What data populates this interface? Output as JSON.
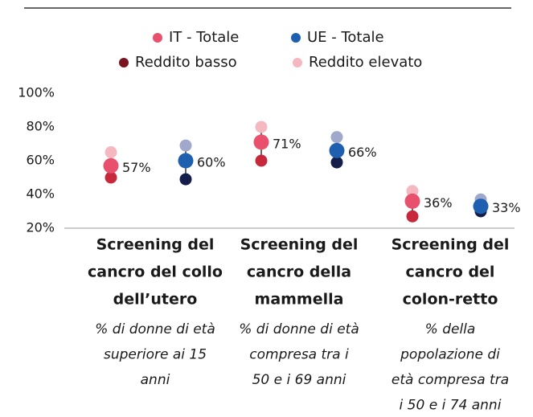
{
  "chart_data": {
    "type": "dot",
    "categories": [
      {
        "title_lines": [
          "Screening del",
          "cancro del collo",
          "dell’utero"
        ],
        "subtitle_lines": [
          "% di donne di età",
          "superiore ai 15",
          "anni"
        ]
      },
      {
        "title_lines": [
          "Screening del",
          "cancro della",
          "mammella"
        ],
        "subtitle_lines": [
          "% di donne di età",
          "compresa tra i",
          "50 e i 69 anni"
        ]
      },
      {
        "title_lines": [
          "Screening del",
          "cancro del",
          "colon-retto"
        ],
        "subtitle_lines": [
          "% della",
          "popolazione di",
          "età compresa tra",
          "i 50 e i 74 anni"
        ]
      }
    ],
    "series": [
      {
        "name": "IT - Totale",
        "color": "#e8506e",
        "group": 0,
        "values": [
          57,
          71,
          36
        ],
        "value_labels": [
          "57%",
          "71%",
          "36%"
        ]
      },
      {
        "name": "UE - Totale",
        "color": "#1f5fb0",
        "group": 1,
        "values": [
          60,
          66,
          33
        ],
        "value_labels": [
          "60%",
          "66%",
          "33%"
        ]
      },
      {
        "name": "Reddito basso",
        "legend_color": "#7a1420",
        "color": "#c8283c",
        "color_ue": "#141e4a",
        "values": [
          50,
          60,
          27
        ],
        "values_ue": [
          49,
          59,
          30
        ]
      },
      {
        "name": "Reddito elevato",
        "legend_color": "#f5b8c0",
        "color": "#f5b8c0",
        "color_ue": "#a0a8cc",
        "values": [
          65,
          80,
          42
        ],
        "values_ue": [
          69,
          74,
          37
        ]
      }
    ],
    "ylim": [
      20,
      100
    ],
    "yticks": [
      {
        "value": 20,
        "label": "20%"
      },
      {
        "value": 40,
        "label": "40%"
      },
      {
        "value": 60,
        "label": "60%"
      },
      {
        "value": 80,
        "label": "80%"
      },
      {
        "value": 100,
        "label": "100%"
      }
    ]
  }
}
